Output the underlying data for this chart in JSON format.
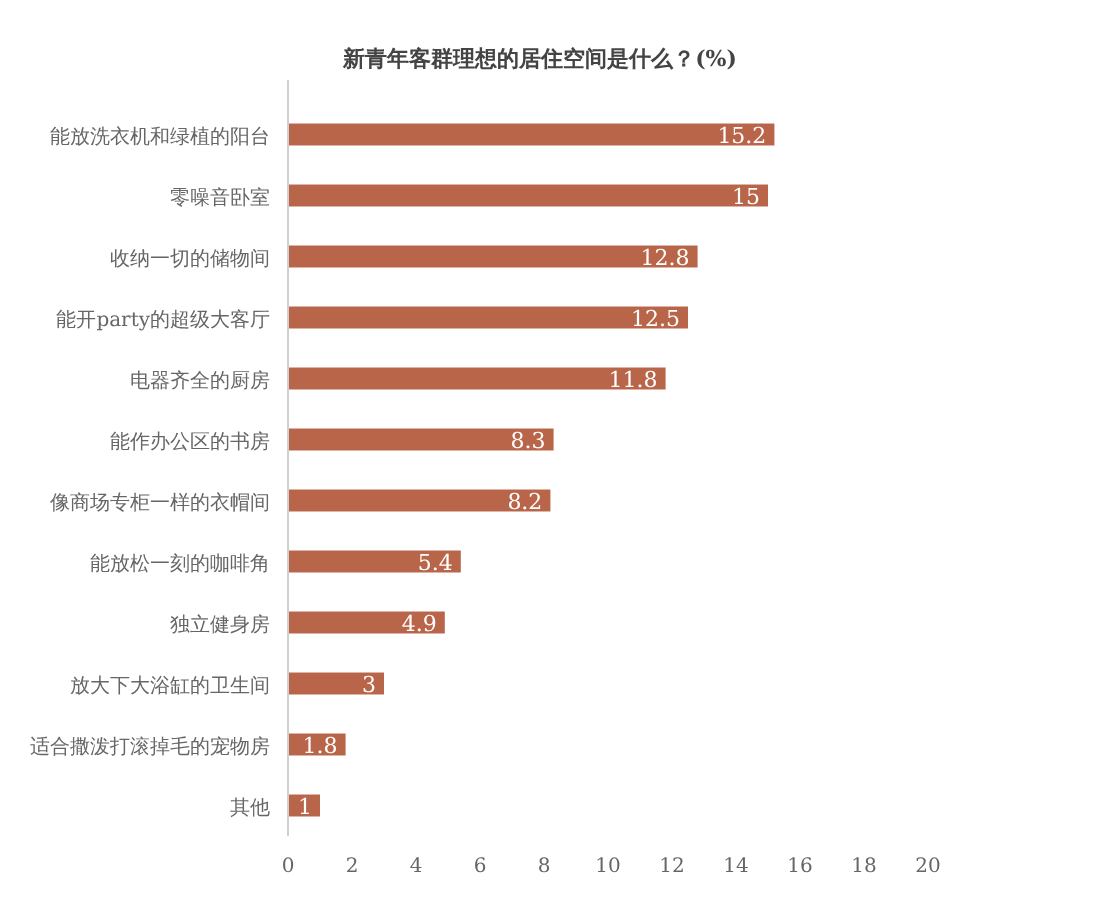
{
  "chart_data": {
    "type": "bar",
    "orientation": "horizontal",
    "title": "新青年客群理想的居住空间是什么？(%)",
    "categories": [
      "能放洗衣机和绿植的阳台",
      "零噪音卧室",
      "收纳一切的储物间",
      "能开party的超级大客厅",
      "电器齐全的厨房",
      "能作办公区的书房",
      "像商场专柜一样的衣帽间",
      "能放松一刻的咖啡角",
      "独立健身房",
      "放大下大浴缸的卫生间",
      "适合撒泼打滚掉毛的宠物房",
      "其他"
    ],
    "values": [
      15.2,
      15,
      12.8,
      12.5,
      11.8,
      8.3,
      8.2,
      5.4,
      4.9,
      3,
      1.8,
      1
    ],
    "color": "#b9654a",
    "xlim": [
      0,
      20
    ],
    "xticks": [
      0,
      2,
      4,
      6,
      8,
      10,
      12,
      14,
      16,
      18,
      20
    ],
    "data_labels": true,
    "grid": false
  }
}
